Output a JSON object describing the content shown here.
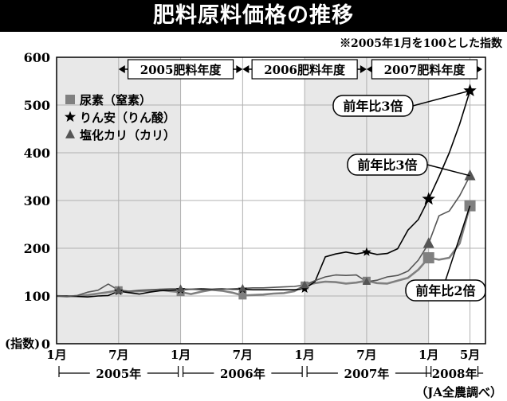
{
  "title": "肥料原料価格の推移",
  "note": "※2005年1月を100とした指数",
  "source": "（JA全農調べ）",
  "colors": {
    "urea": "#808080",
    "dap": "#000000",
    "potash": "#555555",
    "shade": "#e8e8e8"
  },
  "chart_data": {
    "type": "line",
    "title": "肥料原料価格の推移",
    "ylabel": "(指数)",
    "ylim": [
      0,
      600
    ],
    "yticks": [
      "0",
      "100",
      "200",
      "300",
      "400",
      "500",
      "600"
    ],
    "grid": true,
    "legend_position": "top-left",
    "x_tick_labels": [
      {
        "m": 0,
        "label": "1月"
      },
      {
        "m": 6,
        "label": "7月"
      },
      {
        "m": 12,
        "label": "1月"
      },
      {
        "m": 18,
        "label": "7月"
      },
      {
        "m": 24,
        "label": "1月"
      },
      {
        "m": 30,
        "label": "7月"
      },
      {
        "m": 36,
        "label": "1月"
      },
      {
        "m": 40,
        "label": "5月"
      }
    ],
    "year_labels": [
      {
        "from": 0,
        "to": 12,
        "label": "2005年"
      },
      {
        "from": 12,
        "to": 24,
        "label": "2006年"
      },
      {
        "from": 24,
        "to": 36,
        "label": "2007年"
      },
      {
        "from": 36,
        "to": 41,
        "label": "2008年"
      }
    ],
    "fiscal_years": [
      {
        "from": 6,
        "to": 18,
        "label": "2005肥料年度"
      },
      {
        "from": 18,
        "to": 30,
        "label": "2006肥料年度"
      },
      {
        "from": 30,
        "to": 42,
        "label": "2007肥料年度"
      }
    ],
    "shaded_ranges": [
      [
        0,
        12
      ],
      [
        24,
        36
      ]
    ],
    "x": [
      0,
      1,
      2,
      3,
      4,
      5,
      6,
      7,
      8,
      9,
      10,
      11,
      12,
      13,
      14,
      15,
      16,
      17,
      18,
      19,
      20,
      21,
      22,
      23,
      24,
      25,
      26,
      27,
      28,
      29,
      30,
      31,
      32,
      33,
      34,
      35,
      36,
      37,
      38,
      39,
      40
    ],
    "series": [
      {
        "name": "尿素（窒素）",
        "key": "urea",
        "marker": "square",
        "values": [
          100,
          99,
          100,
          102,
          105,
          108,
          112,
          109,
          110,
          111,
          113,
          110,
          108,
          104,
          109,
          113,
          111,
          107,
          101,
          102,
          103,
          105,
          106,
          110,
          122,
          127,
          130,
          129,
          126,
          128,
          132,
          127,
          126,
          132,
          138,
          155,
          180,
          176,
          180,
          210,
          289
        ],
        "marked_points": [
          6,
          12,
          18,
          24,
          30,
          36,
          40
        ]
      },
      {
        "name": "りん安（りん酸）",
        "key": "dap",
        "marker": "star",
        "values": [
          100,
          100,
          99,
          98,
          100,
          101,
          110,
          107,
          104,
          108,
          111,
          112,
          113,
          114,
          115,
          114,
          115,
          114,
          114,
          113,
          113,
          113,
          113,
          113,
          115,
          130,
          182,
          188,
          192,
          188,
          192,
          187,
          189,
          199,
          238,
          260,
          303,
          350,
          400,
          460,
          530
        ],
        "marked_points": [
          6,
          12,
          18,
          24,
          30,
          36,
          40
        ]
      },
      {
        "name": "塩化カリ（カリ）",
        "key": "potash",
        "marker": "triangle",
        "values": [
          100,
          99,
          101,
          108,
          112,
          125,
          112,
          110,
          112,
          113,
          114,
          115,
          115,
          114,
          113,
          113,
          114,
          115,
          116,
          117,
          117,
          118,
          119,
          120,
          123,
          132,
          140,
          144,
          143,
          144,
          130,
          133,
          140,
          143,
          152,
          175,
          210,
          268,
          278,
          310,
          352
        ],
        "marked_points": [
          6,
          12,
          18,
          24,
          30,
          36,
          40
        ]
      }
    ],
    "annotations": [
      {
        "text": "前年比3倍",
        "target_series": "dap",
        "target_x": 40
      },
      {
        "text": "前年比3倍",
        "target_series": "potash",
        "target_x": 40
      },
      {
        "text": "前年比2倍",
        "target_series": "urea",
        "target_x": 40
      }
    ]
  }
}
